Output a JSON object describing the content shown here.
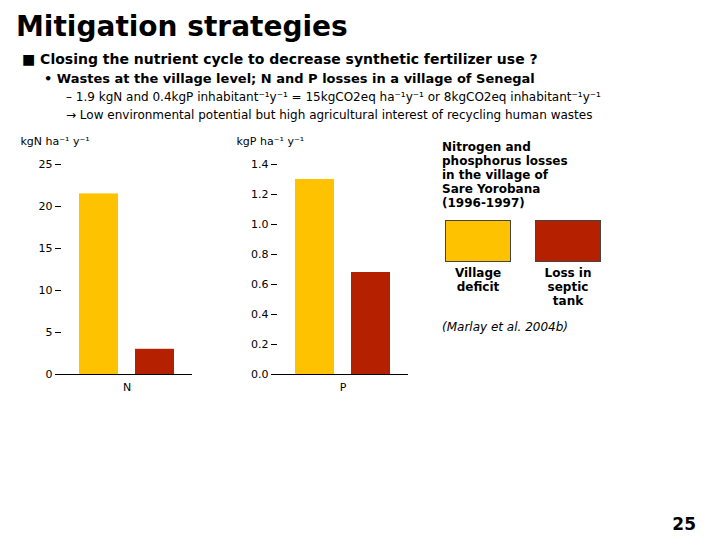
{
  "chart_data": [
    {
      "type": "bar",
      "title": "Mitigation strategies",
      "annotations": [
        "■ Closing the nutrient cycle to decrease synthetic fertilizer use ?",
        "• Wastes at the village level; N and P losses in a village of Senegal",
        "– 1.9 kgN and 0.4kgP inhabitant⁻¹y⁻¹ = 15kgCO2eq ha⁻¹y⁻¹ or 8kgCO2eq inhabitant⁻¹y⁻¹",
        "→ Low environmental potential but high agricultural interest of recycling human wastes"
      ],
      "categories": [
        "N"
      ],
      "series": [
        {
          "name": "Village\ndeficit",
          "color": "#FFC200",
          "values": [
            21.5
          ]
        },
        {
          "name": "Loss in\nseptic\ntank",
          "color": "#B52000",
          "values": [
            3.0
          ]
        }
      ],
      "ylabel": "kgN ha⁻¹ y⁻¹",
      "ylim": [
        0,
        25
      ],
      "yticks": [
        0,
        5,
        10,
        15,
        20,
        25
      ],
      "grid": false
    },
    {
      "type": "bar",
      "annotations": [
        "Nitrogen and\nphosphorus losses\nin the village of\nSare Yorobana\n(1996-1997)",
        "(Marlay et al. 2004b)",
        "25"
      ],
      "categories": [
        "P"
      ],
      "series": [
        {
          "name": "Village\ndeficit",
          "color": "#FFC200",
          "values": [
            1.3
          ]
        },
        {
          "name": "Loss in\nseptic\ntank",
          "color": "#B52000",
          "values": [
            0.68
          ]
        }
      ],
      "ylabel": "kgP ha⁻¹ y⁻¹",
      "ylim": [
        0.0,
        1.4
      ],
      "yticks": [
        {
          "value": 0,
          "label": "0.0"
        },
        0.2,
        0.4,
        0.6,
        0.8,
        {
          "value": 1,
          "label": "1.0"
        },
        1.2,
        1.4
      ],
      "grid": false,
      "legend": "right"
    }
  ]
}
